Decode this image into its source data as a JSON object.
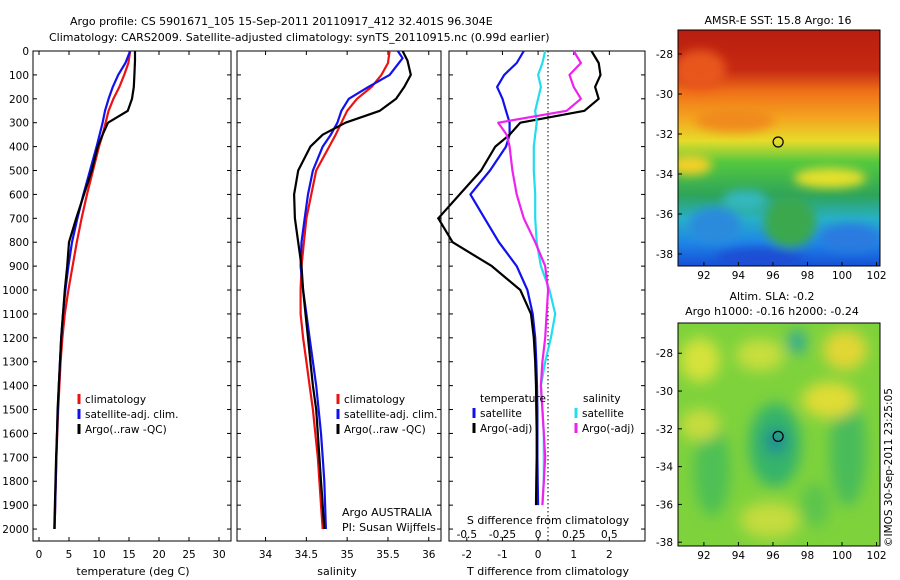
{
  "header": {
    "title_line1": "Argo profile: CS 5901671_105 15-Sep-2011 20110917_412 32.401S 96.304E",
    "title_line2": "Climatology: CARS2009. Satellite-adjusted climatology: synTS_20110915.nc (0.99d earlier)"
  },
  "colors": {
    "climatology": "#ee1111",
    "satellite": "#1111ee",
    "argo": "#000000",
    "satellite_salinity": "#22ddee",
    "argo_salinity": "#ee22ee"
  },
  "depth_axis": {
    "ylim": [
      0,
      2050
    ],
    "ticks": [
      "0",
      "100",
      "200",
      "300",
      "400",
      "500",
      "600",
      "700",
      "800",
      "900",
      "1000",
      "1100",
      "1200",
      "1300",
      "1400",
      "1500",
      "1600",
      "1700",
      "1800",
      "1900",
      "2000"
    ]
  },
  "chart_data": [
    {
      "type": "line",
      "id": "temperature",
      "xlabel": "temperature (deg C)",
      "xlim": [
        -1,
        32
      ],
      "xticks": [
        "0",
        "5",
        "10",
        "15",
        "20",
        "25",
        "30"
      ],
      "series": [
        {
          "name": "climatology",
          "color": "#ee1111",
          "x": [
            15.2,
            14.9,
            14.2,
            13.4,
            12.4,
            11.6,
            11.1,
            10.6,
            10.0,
            9.0,
            8.0,
            7.1,
            6.3,
            5.6,
            4.9,
            4.3,
            3.9,
            3.6,
            3.4,
            3.2,
            3.05,
            2.9,
            2.8,
            2.7,
            2.6
          ],
          "y": [
            0,
            50,
            100,
            150,
            200,
            250,
            300,
            350,
            400,
            500,
            600,
            700,
            800,
            900,
            1000,
            1100,
            1200,
            1300,
            1400,
            1500,
            1600,
            1700,
            1800,
            1900,
            2000
          ]
        },
        {
          "name": "satellite-adj. clim.",
          "color": "#1111ee",
          "x": [
            15.2,
            14.4,
            13.2,
            12.3,
            11.6,
            11.0,
            10.6,
            10.1,
            9.6,
            8.5,
            7.4,
            6.4,
            5.5,
            4.9,
            4.4,
            4.0,
            3.7,
            3.5,
            3.3,
            3.15,
            3.0,
            2.9,
            2.8,
            2.7,
            2.6
          ],
          "y": [
            0,
            50,
            100,
            150,
            200,
            250,
            300,
            350,
            400,
            500,
            600,
            700,
            800,
            900,
            1000,
            1100,
            1200,
            1300,
            1400,
            1500,
            1600,
            1700,
            1800,
            1900,
            2000
          ]
        },
        {
          "name": "Argo(..raw -QC)",
          "color": "#000000",
          "x": [
            16.0,
            16.0,
            15.9,
            15.8,
            15.5,
            14.8,
            11.5,
            10.6,
            9.8,
            8.8,
            7.5,
            6.2,
            5.0,
            4.7,
            4.3,
            4.0,
            3.7,
            3.5,
            3.3,
            3.1,
            3.0,
            2.85,
            2.75,
            2.65,
            2.55
          ],
          "y": [
            0,
            40,
            100,
            150,
            200,
            250,
            300,
            350,
            400,
            500,
            600,
            700,
            800,
            900,
            1000,
            1100,
            1200,
            1300,
            1400,
            1500,
            1600,
            1700,
            1800,
            1900,
            2000
          ]
        }
      ],
      "legend": {
        "position": "bottom-right",
        "items": [
          "climatology",
          "satellite-adj. clim.",
          "Argo(..raw -QC)"
        ]
      }
    },
    {
      "type": "line",
      "id": "salinity",
      "xlabel": "salinity",
      "xlim": [
        33.65,
        36.15
      ],
      "xticks": [
        "34",
        "34.5",
        "35",
        "35.5",
        "36"
      ],
      "series": [
        {
          "name": "climatology",
          "color": "#ee1111",
          "x": [
            35.52,
            35.5,
            35.42,
            35.3,
            35.12,
            35.0,
            34.93,
            34.86,
            34.78,
            34.62,
            34.56,
            34.5,
            34.47,
            34.44,
            34.43,
            34.43,
            34.46,
            34.5,
            34.54,
            34.58,
            34.61,
            34.64,
            34.66,
            34.68,
            34.7
          ],
          "y": [
            0,
            50,
            100,
            150,
            200,
            250,
            300,
            350,
            400,
            500,
            600,
            700,
            800,
            900,
            1000,
            1100,
            1200,
            1300,
            1400,
            1500,
            1600,
            1700,
            1800,
            1900,
            2000
          ]
        },
        {
          "name": "satellite-adj. clim.",
          "color": "#1111ee",
          "x": [
            35.62,
            35.68,
            35.52,
            35.26,
            35.02,
            34.93,
            34.88,
            34.8,
            34.7,
            34.58,
            34.52,
            34.48,
            34.44,
            34.43,
            34.46,
            34.5,
            34.54,
            34.58,
            34.62,
            34.65,
            34.68,
            34.7,
            34.72,
            34.73,
            34.74
          ],
          "y": [
            0,
            30,
            100,
            150,
            200,
            250,
            300,
            350,
            400,
            500,
            600,
            700,
            800,
            900,
            1000,
            1100,
            1200,
            1300,
            1400,
            1500,
            1600,
            1700,
            1800,
            1900,
            2000
          ]
        },
        {
          "name": "Argo(..raw -QC)",
          "color": "#000000",
          "x": [
            35.68,
            35.74,
            35.78,
            35.7,
            35.6,
            35.4,
            34.98,
            34.7,
            34.55,
            34.4,
            34.35,
            34.36,
            34.4,
            34.44,
            34.46,
            34.49,
            34.52,
            34.55,
            34.58,
            34.62,
            34.64,
            34.66,
            34.68,
            34.7,
            34.72
          ],
          "y": [
            0,
            40,
            100,
            150,
            200,
            250,
            300,
            350,
            400,
            500,
            600,
            700,
            800,
            900,
            1000,
            1100,
            1200,
            1300,
            1400,
            1500,
            1600,
            1700,
            1800,
            1900,
            2000
          ]
        }
      ],
      "legend": {
        "position": "bottom-right",
        "items": [
          "climatology",
          "satellite-adj. clim.",
          "Argo(..raw -QC)"
        ]
      },
      "annotations": [
        "Argo AUSTRALIA",
        "PI: Susan Wijffels"
      ]
    },
    {
      "type": "line",
      "id": "differences",
      "xlabel": "T difference from climatology",
      "top_label": "S difference from climatology",
      "xlim": [
        -2.5,
        3.0
      ],
      "xticks_T": [
        "-2",
        "-1",
        "0",
        "1",
        "2"
      ],
      "xticks_S": [
        "-0.5",
        "-0.25",
        "0",
        "0.25",
        "0.5"
      ],
      "series": [
        {
          "name": "satellite",
          "group": "temperature",
          "color": "#1111ee",
          "x": [
            -0.4,
            -0.6,
            -0.95,
            -1.15,
            -1.0,
            -0.9,
            -0.8,
            -0.8,
            -0.9,
            -1.35,
            -1.9,
            -1.5,
            -1.1,
            -0.6,
            -0.3,
            -0.15,
            -0.08,
            -0.05,
            -0.03,
            -0.02,
            -0.02,
            -0.02,
            -0.01,
            0.0
          ],
          "y": [
            0,
            50,
            100,
            150,
            200,
            250,
            300,
            350,
            400,
            500,
            600,
            700,
            800,
            900,
            1000,
            1100,
            1200,
            1300,
            1400,
            1500,
            1600,
            1700,
            1800,
            1900
          ]
        },
        {
          "name": "Argo(-adj)",
          "group": "temperature",
          "color": "#000000",
          "x": [
            1.5,
            1.7,
            1.75,
            1.6,
            1.7,
            1.3,
            -0.5,
            -0.8,
            -1.2,
            -1.6,
            -2.2,
            -2.8,
            -2.4,
            -1.3,
            -0.5,
            -0.2,
            -0.12,
            -0.08,
            -0.06,
            -0.05,
            -0.04,
            -0.04,
            -0.05,
            -0.06
          ],
          "y": [
            0,
            50,
            100,
            150,
            200,
            250,
            300,
            350,
            400,
            500,
            600,
            700,
            800,
            900,
            1000,
            1100,
            1200,
            1300,
            1400,
            1500,
            1600,
            1700,
            1800,
            1900
          ]
        },
        {
          "name": "satellite",
          "group": "salinity",
          "color": "#22ddee",
          "x": [
            0.05,
            0.03,
            0.0,
            0.02,
            0.0,
            -0.02,
            -0.01,
            -0.02,
            -0.03,
            -0.03,
            -0.02,
            -0.02,
            -0.01,
            0.02,
            0.08,
            0.12,
            0.09,
            0.05,
            0.02,
            0.03,
            0.04,
            0.04,
            0.04,
            0.03
          ],
          "y": [
            0,
            50,
            100,
            150,
            200,
            250,
            300,
            350,
            400,
            500,
            600,
            700,
            800,
            900,
            1000,
            1100,
            1200,
            1300,
            1400,
            1500,
            1600,
            1700,
            1800,
            1900
          ]
        },
        {
          "name": "Argo(-adj)",
          "group": "salinity",
          "color": "#ee22ee",
          "x": [
            0.25,
            0.3,
            0.22,
            0.25,
            0.3,
            0.2,
            -0.28,
            -0.22,
            -0.2,
            -0.18,
            -0.15,
            -0.1,
            -0.02,
            0.05,
            0.07,
            0.06,
            0.05,
            0.03,
            0.02,
            0.03,
            0.04,
            0.05,
            0.04,
            0.03
          ],
          "y": [
            0,
            50,
            100,
            150,
            200,
            250,
            300,
            350,
            400,
            500,
            600,
            700,
            800,
            900,
            1000,
            1100,
            1200,
            1300,
            1400,
            1500,
            1600,
            1700,
            1800,
            1900
          ]
        }
      ],
      "legend": {
        "temperature_title": "temperature",
        "salinity_title": "salinity",
        "items": [
          "satellite",
          "Argo(-adj)",
          "satellite",
          "Argo(-adj)"
        ]
      }
    },
    {
      "type": "heatmap",
      "id": "sst_map",
      "title": "AMSR-E SST: 15.8 Argo: 16",
      "xlim": [
        90.5,
        102.2
      ],
      "ylim": [
        -38.6,
        -26.8
      ],
      "xticks": [
        "92",
        "94",
        "96",
        "98",
        "100",
        "102"
      ],
      "yticks": [
        "-28",
        "-30",
        "-32",
        "-34",
        "-36",
        "-38"
      ],
      "marker": {
        "lon": 96.3,
        "lat": -32.4
      }
    },
    {
      "type": "heatmap",
      "id": "sla_map",
      "title_line1": "Altim. SLA: -0.2",
      "title_line2": "Argo h1000: -0.16 h2000: -0.24",
      "xlim": [
        90.5,
        102.2
      ],
      "ylim": [
        -38.2,
        -26.4
      ],
      "xticks": [
        "92",
        "94",
        "96",
        "98",
        "100",
        "102"
      ],
      "yticks": [
        "-28",
        "-30",
        "-32",
        "-34",
        "-36",
        "-38"
      ],
      "marker": {
        "lon": 96.3,
        "lat": -32.4
      }
    }
  ],
  "footer": {
    "stamp": "©IMOS 30-Sep-2011 23:25:05"
  }
}
